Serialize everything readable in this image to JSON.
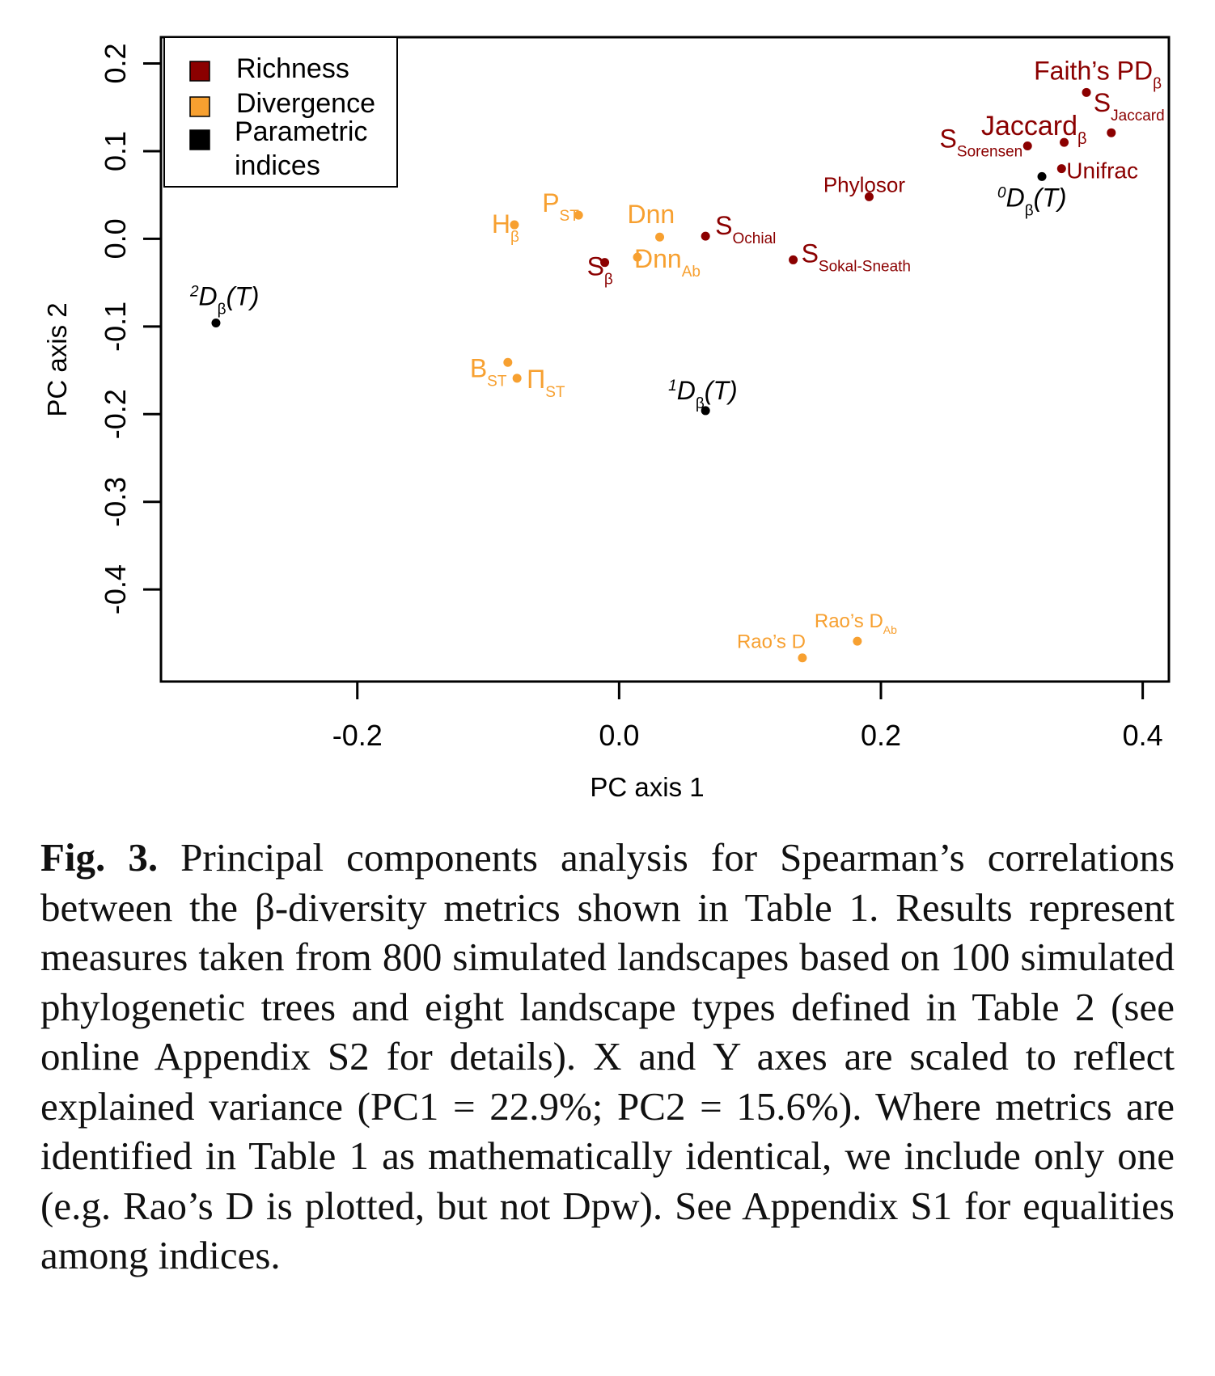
{
  "chart_data": {
    "type": "scatter",
    "xlabel": "PC axis 1",
    "ylabel": "PC axis 2",
    "xlim": [
      -0.35,
      0.42
    ],
    "ylim": [
      -0.505,
      0.23
    ],
    "xticks": [
      "-0.2",
      "0.0",
      "0.2",
      "0.4"
    ],
    "yticks": [
      "0.2",
      "0.1",
      "0.0",
      "-0.1",
      "-0.2",
      "-0.3",
      "-0.4"
    ],
    "colors": {
      "Richness": "#8b0000",
      "Divergence": "#f7a030",
      "Parametric indices": "#000000"
    },
    "legend": {
      "placement": "top-left",
      "entries": [
        {
          "group": "Richness",
          "label": "Richness"
        },
        {
          "group": "Divergence",
          "label": "Divergence"
        },
        {
          "group": "Parametric indices",
          "label": "Parametric indices"
        }
      ]
    },
    "points": [
      {
        "id": "faiths-pd",
        "group": "Richness",
        "x": 0.357,
        "y": 0.167,
        "main": "Faith’s PD",
        "sub": "β",
        "sup": "",
        "italic": false,
        "size": 32,
        "anchor": "end",
        "dx": 93,
        "dy": -16
      },
      {
        "id": "s-jaccard",
        "group": "Richness",
        "x": 0.376,
        "y": 0.121,
        "main": "S",
        "sub": "Jaccard",
        "sup": "",
        "italic": false,
        "size": 32,
        "anchor": "start",
        "dx": -22,
        "dy": -26
      },
      {
        "id": "jaccard",
        "group": "Richness",
        "x": 0.34,
        "y": 0.11,
        "main": "Jaccard",
        "sub": "β",
        "sup": "",
        "italic": false,
        "size": 34,
        "anchor": "end",
        "dx": 28,
        "dy": -9
      },
      {
        "id": "s-sorensen",
        "group": "Richness",
        "x": 0.312,
        "y": 0.106,
        "main": "S",
        "sub": "Sorensen",
        "sup": "",
        "italic": false,
        "size": 32,
        "anchor": "end",
        "dx": -6,
        "dy": 2
      },
      {
        "id": "unifrac",
        "group": "Richness",
        "x": 0.338,
        "y": 0.08,
        "main": "Unifrac",
        "sub": "",
        "sup": "",
        "italic": false,
        "size": 28,
        "anchor": "start",
        "dx": 6,
        "dy": 12
      },
      {
        "id": "phylosor",
        "group": "Richness",
        "x": 0.191,
        "y": 0.048,
        "main": "Phylosor",
        "sub": "",
        "sup": "",
        "italic": false,
        "size": 26,
        "anchor": "middle",
        "dx": -6,
        "dy": -6
      },
      {
        "id": "s-ochial",
        "group": "Richness",
        "x": 0.066,
        "y": 0.003,
        "main": "S",
        "sub": "Ochial",
        "sup": "",
        "italic": false,
        "size": 32,
        "anchor": "start",
        "dx": 12,
        "dy": -2
      },
      {
        "id": "s-sokal-sneath",
        "group": "Richness",
        "x": 0.133,
        "y": -0.024,
        "main": "S",
        "sub": "Sokal-Sneath",
        "sup": "",
        "italic": false,
        "size": 32,
        "anchor": "start",
        "dx": 10,
        "dy": 3
      },
      {
        "id": "s-beta",
        "group": "Richness",
        "x": -0.011,
        "y": -0.027,
        "main": "S",
        "sub": "β",
        "sup": "",
        "italic": false,
        "size": 32,
        "anchor": "start",
        "dx": -22,
        "dy": 16
      },
      {
        "id": "h-beta",
        "group": "Divergence",
        "x": -0.08,
        "y": 0.016,
        "main": "H",
        "sub": "β",
        "sup": "",
        "italic": false,
        "size": 32,
        "anchor": "start",
        "dx": -28,
        "dy": 10
      },
      {
        "id": "p-st",
        "group": "Divergence",
        "x": -0.031,
        "y": 0.027,
        "main": "P",
        "sub": "ST",
        "sup": "",
        "italic": false,
        "size": 32,
        "anchor": "start",
        "dx": -45,
        "dy": -4
      },
      {
        "id": "dnn",
        "group": "Divergence",
        "x": 0.031,
        "y": 0.002,
        "main": "Dnn",
        "sub": "",
        "sup": "",
        "italic": false,
        "size": 32,
        "anchor": "start",
        "dx": -40,
        "dy": -17
      },
      {
        "id": "dnn-ab",
        "group": "Divergence",
        "x": 0.014,
        "y": -0.021,
        "main": "Dnn",
        "sub": "Ab",
        "sup": "",
        "italic": false,
        "size": 32,
        "anchor": "start",
        "dx": -4,
        "dy": 13
      },
      {
        "id": "b-st",
        "group": "Divergence",
        "x": -0.085,
        "y": -0.141,
        "main": "B",
        "sub": "ST",
        "sup": "",
        "italic": false,
        "size": 32,
        "anchor": "start",
        "dx": -47,
        "dy": 18
      },
      {
        "id": "pi-st",
        "group": "Divergence",
        "x": -0.078,
        "y": -0.159,
        "main": "Π",
        "sub": "ST",
        "sup": "",
        "italic": false,
        "size": 32,
        "anchor": "start",
        "dx": 12,
        "dy": 12
      },
      {
        "id": "raos-d-ab",
        "group": "Divergence",
        "x": 0.182,
        "y": -0.459,
        "main": "Rao’s D",
        "sub": "Ab",
        "sup": "",
        "italic": false,
        "size": 24,
        "anchor": "start",
        "dx": -53,
        "dy": -17
      },
      {
        "id": "raos-d",
        "group": "Divergence",
        "x": 0.14,
        "y": -0.478,
        "main": "Rao’s D",
        "sub": "",
        "sup": "",
        "italic": false,
        "size": 24,
        "anchor": "end",
        "dx": 4,
        "dy": -12
      },
      {
        "id": "0d-beta-t",
        "group": "Parametric indices",
        "x": 0.323,
        "y": 0.071,
        "main": "D",
        "sub": "β",
        "sup": "0",
        "italic": true,
        "size": 32,
        "anchor": "start",
        "dx": -55,
        "dy": 37
      },
      {
        "id": "2d-beta-t",
        "group": "Parametric indices",
        "x": -0.308,
        "y": -0.096,
        "main": "D",
        "sub": "β",
        "sup": "2",
        "italic": true,
        "size": 32,
        "anchor": "start",
        "dx": -32,
        "dy": -22
      },
      {
        "id": "1d-beta-t",
        "group": "Parametric indices",
        "x": 0.066,
        "y": -0.196,
        "main": "D",
        "sub": "β",
        "sup": "1",
        "italic": true,
        "size": 32,
        "anchor": "start",
        "dx": -46,
        "dy": -14
      }
    ]
  },
  "caption": {
    "label": "Fig. 3.",
    "text": "Principal components analysis for Spearman’s correlations between the β-diversity metrics shown in Table 1. Results represent measures taken from 800 simulated landscapes based on 100 simulated phylogenetic trees and eight landscape types defined in Table 2 (see online Appendix S2 for details). X and Υ axes are scaled to reflect explained variance (PC1 = 22.9%; PC2 = 15.6%). Where metrics are identified in Table 1 as mathematically identical, we include only one (e.g. Rao’s D is plotted, but not Dpw). See Appendix S1 for equalities among indices."
  }
}
